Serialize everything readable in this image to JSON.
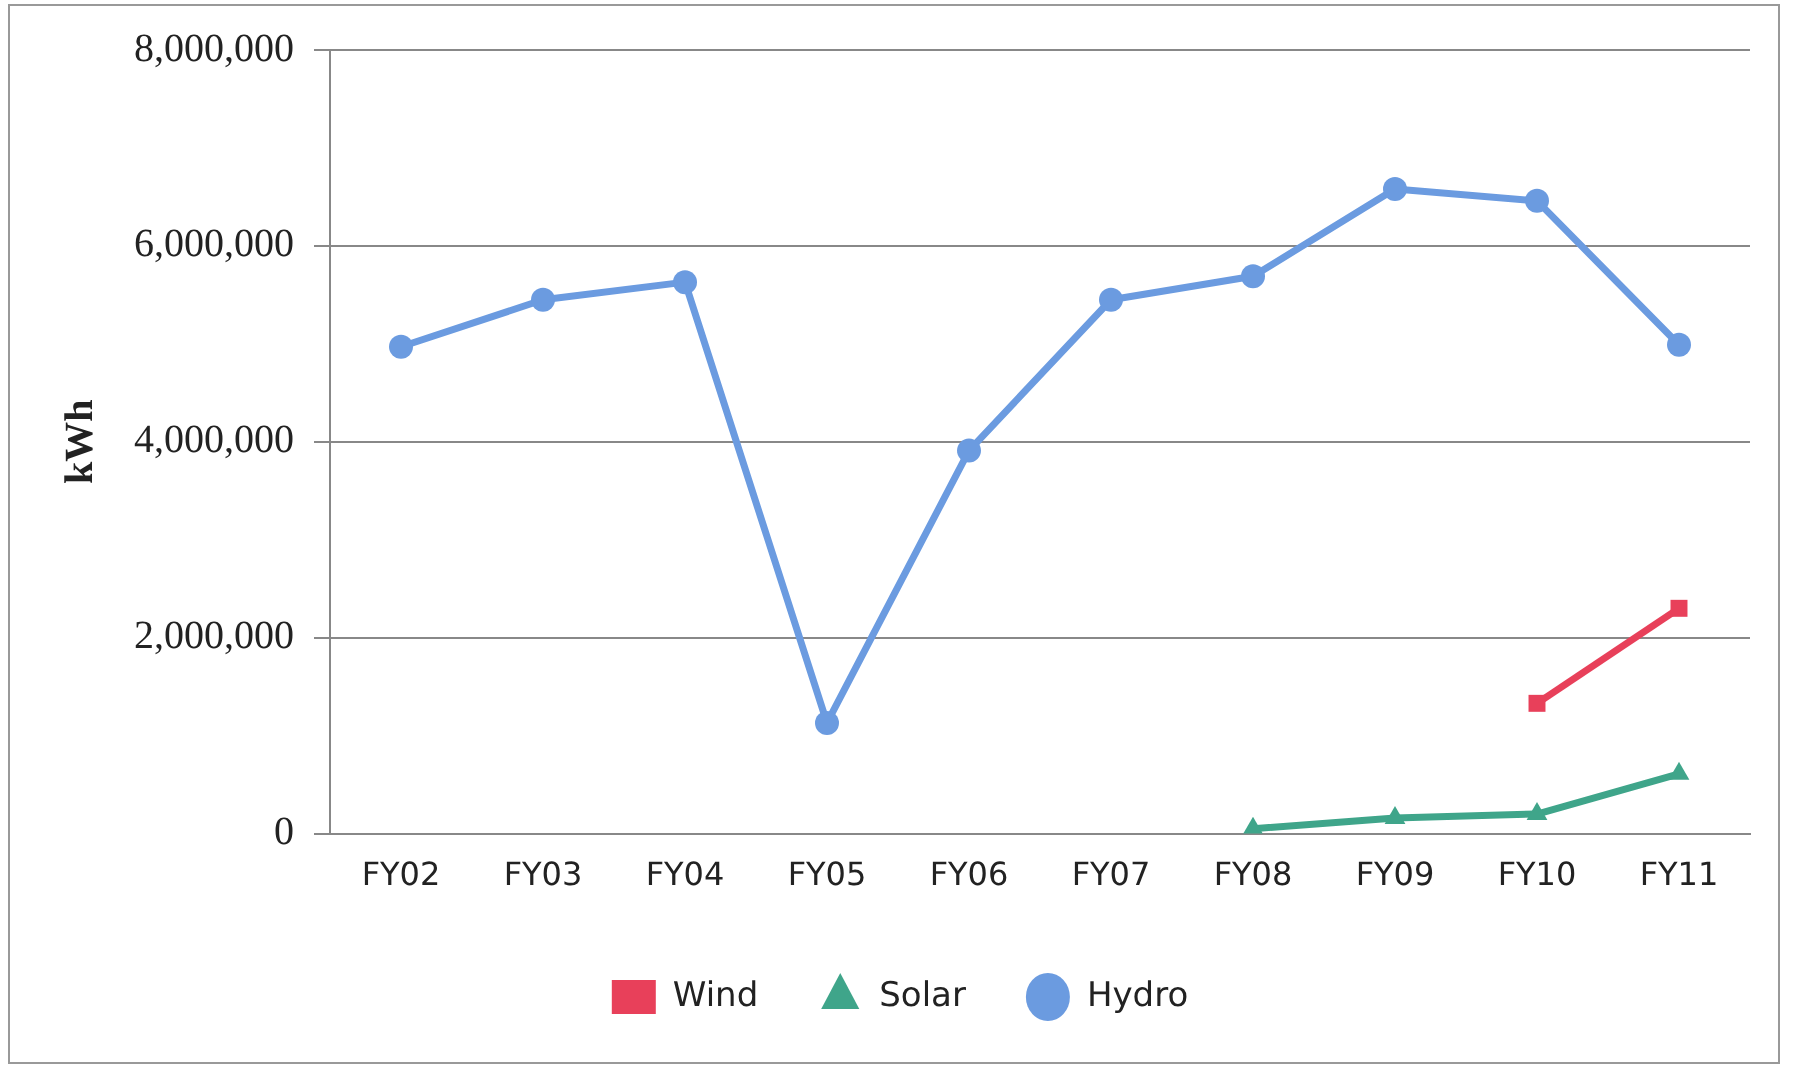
{
  "chart_data": {
    "type": "line",
    "ylabel": "kWh",
    "categories": [
      "FY02",
      "FY03",
      "FY04",
      "FY05",
      "FY06",
      "FY07",
      "FY08",
      "FY09",
      "FY10",
      "FY11"
    ],
    "series": [
      {
        "name": "Wind",
        "color": "#e8405a",
        "marker": "square",
        "values": [
          null,
          null,
          null,
          null,
          null,
          null,
          null,
          null,
          1330000,
          2300000
        ]
      },
      {
        "name": "Solar",
        "color": "#3fa58a",
        "marker": "triangle",
        "values": [
          null,
          null,
          null,
          null,
          null,
          null,
          50000,
          160000,
          200000,
          610000
        ]
      },
      {
        "name": "Hydro",
        "color": "#6b9be0",
        "marker": "circle",
        "values": [
          4970000,
          5450000,
          5630000,
          1130000,
          3910000,
          5450000,
          5690000,
          6580000,
          6460000,
          4990000
        ]
      }
    ],
    "ylim": [
      0,
      8000000
    ],
    "yticks": [
      0,
      {
        "value": 2000000,
        "label": "2,000,000"
      },
      {
        "value": 4000000,
        "label": "4,000,000"
      },
      {
        "value": 6000000,
        "label": "6,000,000"
      },
      {
        "value": 8000000,
        "label": "8,000,000"
      }
    ],
    "grid": "y",
    "legend": "bottom"
  }
}
